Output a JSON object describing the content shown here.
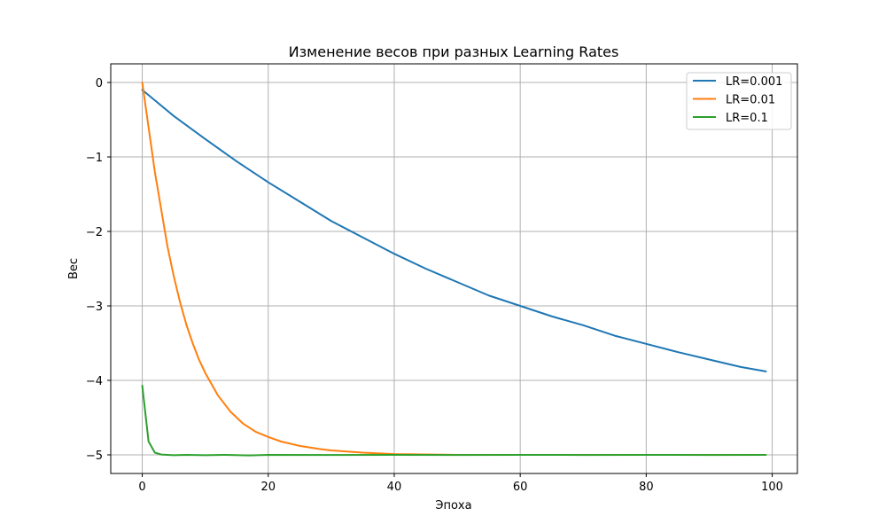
{
  "chart_data": {
    "type": "line",
    "title": "Изменение весов при разных Learning Rates",
    "xlabel": "Эпоха",
    "ylabel": "Вес",
    "xlim": [
      -5,
      104
    ],
    "ylim": [
      -5.25,
      0.25
    ],
    "xticks": [
      0,
      20,
      40,
      60,
      80,
      100
    ],
    "yticks": [
      0,
      -1,
      -2,
      -3,
      -4,
      -5
    ],
    "xtick_labels": [
      "0",
      "20",
      "40",
      "60",
      "80",
      "100"
    ],
    "ytick_labels": [
      "0",
      "−1",
      "−2",
      "−3",
      "−4",
      "−5"
    ],
    "grid": true,
    "legend_position": "top-right",
    "series": [
      {
        "name": "LR=0.001",
        "color": "#1f77b4",
        "x": [
          0,
          5,
          10,
          15,
          20,
          25,
          30,
          35,
          40,
          45,
          50,
          55,
          60,
          65,
          70,
          75,
          80,
          85,
          90,
          95,
          99
        ],
        "y": [
          -0.1,
          -0.45,
          -0.76,
          -1.06,
          -1.34,
          -1.6,
          -1.86,
          -2.08,
          -2.3,
          -2.5,
          -2.68,
          -2.86,
          -3.0,
          -3.14,
          -3.26,
          -3.4,
          -3.51,
          -3.62,
          -3.72,
          -3.82,
          -3.88
        ]
      },
      {
        "name": "LR=0.01",
        "color": "#ff7f0e",
        "x": [
          0,
          1,
          2,
          3,
          4,
          5,
          6,
          7,
          8,
          9,
          10,
          12,
          14,
          16,
          18,
          20,
          22,
          25,
          28,
          30,
          35,
          40,
          50,
          60,
          70,
          80,
          90,
          99
        ],
        "y": [
          0.0,
          -0.6,
          -1.2,
          -1.7,
          -2.2,
          -2.6,
          -2.95,
          -3.25,
          -3.5,
          -3.72,
          -3.9,
          -4.2,
          -4.42,
          -4.58,
          -4.69,
          -4.76,
          -4.82,
          -4.88,
          -4.92,
          -4.94,
          -4.97,
          -4.99,
          -5.0,
          -5.0,
          -5.0,
          -5.0,
          -5.0,
          -5.0
        ]
      },
      {
        "name": "LR=0.1",
        "color": "#2ca02c",
        "x": [
          0,
          1,
          2,
          3,
          4,
          5,
          7,
          10,
          13,
          17,
          20,
          30,
          40,
          50,
          60,
          70,
          80,
          90,
          99
        ],
        "y": [
          -4.07,
          -4.82,
          -4.97,
          -4.995,
          -5.0,
          -5.005,
          -5.0,
          -5.005,
          -5.0,
          -5.008,
          -5.0,
          -5.002,
          -5.0,
          -5.002,
          -5.0,
          -5.001,
          -5.0,
          -5.001,
          -5.0
        ]
      }
    ]
  }
}
